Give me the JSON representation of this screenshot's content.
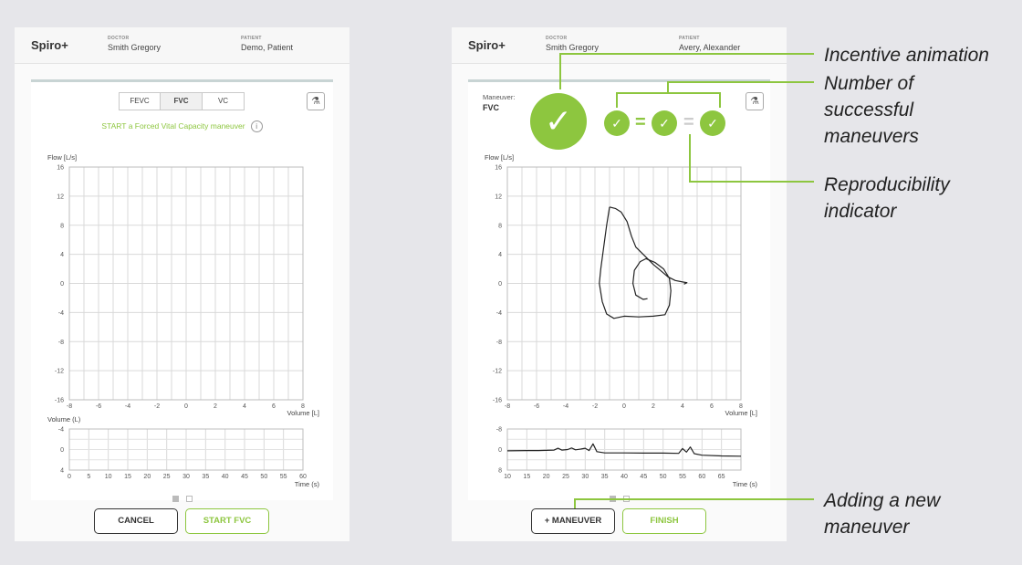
{
  "colors": {
    "accent": "#8dc63f",
    "text": "#333333",
    "background": "#e6e6ea"
  },
  "left_screen": {
    "brand": "Spiro+",
    "doctor_label": "DOCTOR",
    "doctor": "Smith Gregory",
    "patient_label": "PATIENT",
    "patient": "Demo, Patient",
    "tabs": [
      "FEVC",
      "FVC",
      "VC"
    ],
    "active_tab": "FVC",
    "instruction": "START a Forced Vital Capacity maneuver",
    "info_icon": "i",
    "plate_icon": "⚗",
    "cancel_label": "CANCEL",
    "start_label": "START FVC",
    "chart_data": [
      {
        "type": "line",
        "ylabel": "Flow [L/s]",
        "xlabel": "Volume [L]",
        "xlim": [
          -8,
          8
        ],
        "ylim": [
          -16,
          16
        ],
        "x_ticks": [
          "-8",
          "-6",
          "-4",
          "-2",
          "0",
          "2",
          "4",
          "6",
          "8"
        ],
        "y_ticks": [
          "16",
          "12",
          "8",
          "4",
          "0",
          "-4",
          "-8",
          "-12",
          "-16"
        ],
        "grid": true,
        "series": []
      },
      {
        "type": "line",
        "ylabel": "Volume (L)",
        "xlabel": "Time (s)",
        "xlim": [
          0,
          60
        ],
        "ylim": [
          -4,
          4
        ],
        "x_ticks": [
          "0",
          "5",
          "10",
          "15",
          "20",
          "25",
          "30",
          "35",
          "40",
          "45",
          "50",
          "55",
          "60"
        ],
        "y_ticks": [
          "-4",
          "0",
          "4"
        ],
        "grid": true,
        "series": []
      }
    ]
  },
  "right_screen": {
    "brand": "Spiro+",
    "doctor_label": "DOCTOR",
    "doctor": "Smith Gregory",
    "patient_label": "PATIENT",
    "patient": "Avery, Alexander",
    "maneuver_label": "Maneuver:",
    "maneuver_value": "FVC",
    "check_glyph": "✓",
    "equals_glyph": "=",
    "plate_icon": "⚗",
    "add_label": "+ MANEUVER",
    "finish_label": "FINISH",
    "chart_data": [
      {
        "type": "line",
        "ylabel": "Flow [L/s]",
        "xlabel": "Volume [L]",
        "xlim": [
          -8,
          8
        ],
        "ylim": [
          -16,
          16
        ],
        "x_ticks": [
          "-8",
          "-6",
          "-4",
          "-2",
          "0",
          "2",
          "4",
          "6",
          "8"
        ],
        "y_ticks": [
          "16",
          "12",
          "8",
          "4",
          "0",
          "-4",
          "-8",
          "-12",
          "-16"
        ],
        "grid": true,
        "series": [
          {
            "points": [
              [
                -1,
                10.5
              ],
              [
                -0.6,
                10.3
              ],
              [
                -0.2,
                9.8
              ],
              [
                0.2,
                8.5
              ],
              [
                0.5,
                6.5
              ],
              [
                0.8,
                5
              ],
              [
                1.4,
                3.8
              ],
              [
                2,
                2.6
              ],
              [
                2.6,
                1.6
              ],
              [
                3,
                0.9
              ],
              [
                3.5,
                0.4
              ],
              [
                4,
                0.2
              ],
              [
                4.3,
                0.1
              ],
              [
                4.1,
                -0.1
              ]
            ]
          },
          {
            "points": [
              [
                -1,
                10.5
              ],
              [
                -1.2,
                8
              ],
              [
                -1.4,
                5
              ],
              [
                -1.6,
                2
              ],
              [
                -1.7,
                0
              ],
              [
                -1.5,
                -2.5
              ],
              [
                -1.2,
                -4.2
              ],
              [
                -0.7,
                -4.8
              ],
              [
                0,
                -4.5
              ],
              [
                1,
                -4.6
              ],
              [
                2,
                -4.5
              ],
              [
                2.8,
                -4.3
              ],
              [
                3.1,
                -3
              ],
              [
                3.2,
                -1
              ],
              [
                3.1,
                0.7
              ],
              [
                2.7,
                2
              ],
              [
                2.1,
                2.9
              ],
              [
                1.5,
                3.4
              ],
              [
                1.1,
                3
              ],
              [
                0.7,
                1.8
              ],
              [
                0.6,
                0
              ],
              [
                0.8,
                -1.6
              ],
              [
                1.3,
                -2.2
              ],
              [
                1.6,
                -2.1
              ]
            ]
          }
        ]
      },
      {
        "type": "line",
        "ylabel": "",
        "xlabel": "Time (s)",
        "xlim": [
          10,
          70
        ],
        "ylim": [
          -8,
          8
        ],
        "x_ticks": [
          "10",
          "15",
          "20",
          "25",
          "30",
          "35",
          "40",
          "45",
          "50",
          "55",
          "60",
          "65"
        ],
        "y_ticks": [
          "-8",
          "0",
          "8"
        ],
        "grid": true,
        "series": [
          {
            "points": [
              [
                10,
                -0.5
              ],
              [
                15,
                -0.4
              ],
              [
                18,
                -0.4
              ],
              [
                22,
                -0.2
              ],
              [
                23,
                0.5
              ],
              [
                24,
                -0.2
              ],
              [
                25.5,
                0
              ],
              [
                26.5,
                0.6
              ],
              [
                27.5,
                -0.1
              ],
              [
                29,
                0.2
              ],
              [
                30,
                0.5
              ],
              [
                31,
                -0.4
              ],
              [
                32,
                2.2
              ],
              [
                33,
                -0.8
              ],
              [
                35,
                -1.3
              ],
              [
                40,
                -1.3
              ],
              [
                45,
                -1.4
              ],
              [
                50,
                -1.4
              ],
              [
                54,
                -1.5
              ],
              [
                55,
                0.4
              ],
              [
                56,
                -1
              ],
              [
                57,
                1
              ],
              [
                58,
                -1.6
              ],
              [
                60,
                -2.2
              ],
              [
                65,
                -2.5
              ],
              [
                70,
                -2.6
              ]
            ]
          }
        ]
      }
    ]
  },
  "annotations": {
    "incentive": "Incentive animation",
    "successful": [
      "Number of",
      "successful",
      "maneuvers"
    ],
    "reproducibility": [
      "Reproducibility",
      "indicator"
    ],
    "adding": [
      "Adding a new",
      "maneuver"
    ]
  }
}
